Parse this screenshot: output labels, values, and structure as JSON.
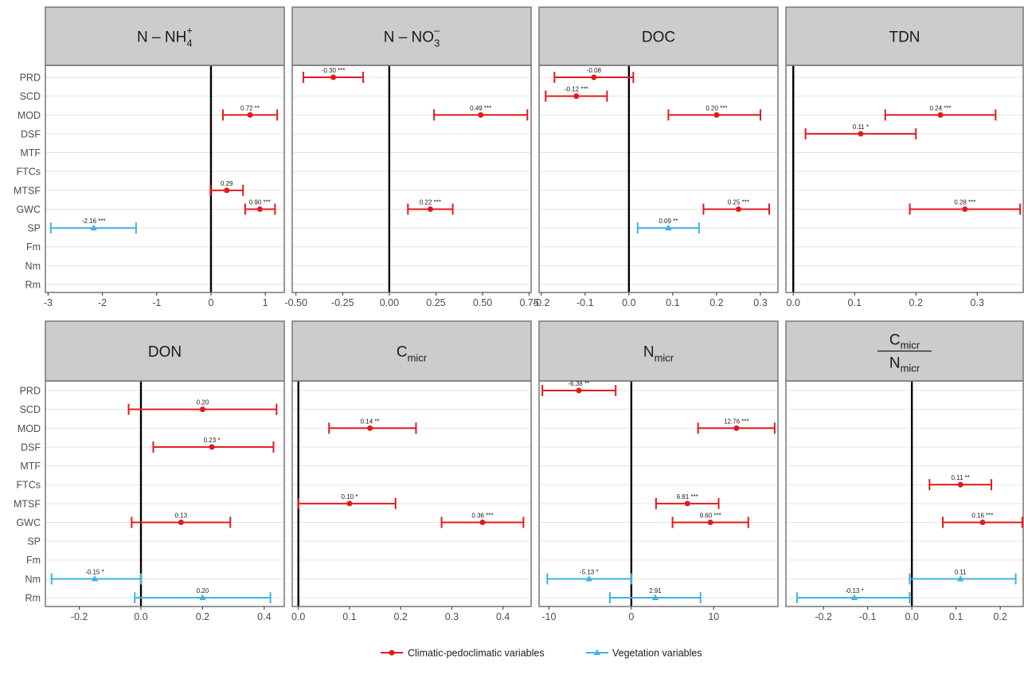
{
  "chart_data": {
    "type": "forest",
    "categories": [
      "PRD",
      "SCD",
      "MOD",
      "DSF",
      "MTF",
      "FTCs",
      "MTSF",
      "GWC",
      "SP",
      "Fm",
      "Nm",
      "Rm"
    ],
    "colors": {
      "Climatic-pedoclimatic variables": "#e31a1c",
      "Vegetation variables": "#3fb3e6"
    },
    "legend": {
      "position": "bottom",
      "items": [
        {
          "label": "Climatic-pedoclimatic variables",
          "color": "#e31a1c",
          "shape": "circle"
        },
        {
          "label": "Vegetation variables",
          "color": "#3fb3e6",
          "shape": "triangle"
        }
      ]
    },
    "panels": [
      {
        "title": {
          "base": "N – NH",
          "sub": "4",
          "sup": "+"
        },
        "xlim": [
          -3.05,
          1.35
        ],
        "ticks": [
          -3,
          -2,
          -1,
          0,
          1
        ],
        "tick_labels": [
          "-3",
          "-2",
          "-1",
          "0",
          "1"
        ],
        "points": [
          {
            "var": "MOD",
            "est": 0.72,
            "lo": 0.22,
            "hi": 1.22,
            "label": "0.72 **",
            "group": "Climatic-pedoclimatic variables"
          },
          {
            "var": "MTSF",
            "est": 0.29,
            "lo": -0.01,
            "hi": 0.59,
            "label": "0.29",
            "group": "Climatic-pedoclimatic variables"
          },
          {
            "var": "GWC",
            "est": 0.9,
            "lo": 0.63,
            "hi": 1.18,
            "label": "0.90 ***",
            "group": "Climatic-pedoclimatic variables"
          },
          {
            "var": "SP",
            "est": -2.16,
            "lo": -2.95,
            "hi": -1.38,
            "label": "-2.16 ***",
            "group": "Vegetation variables"
          }
        ]
      },
      {
        "title": {
          "base": "N – NO",
          "sub": "3",
          "sup": "–"
        },
        "xlim": [
          -0.52,
          0.76
        ],
        "ticks": [
          -0.5,
          -0.25,
          0,
          0.25,
          0.5,
          0.75
        ],
        "tick_labels": [
          "-0.50",
          "-0.25",
          "0.00",
          "0.25",
          "0.50",
          "0.75"
        ],
        "points": [
          {
            "var": "PRD",
            "est": -0.3,
            "lo": -0.46,
            "hi": -0.14,
            "label": "-0.30 ***",
            "group": "Climatic-pedoclimatic variables"
          },
          {
            "var": "MOD",
            "est": 0.49,
            "lo": 0.24,
            "hi": 0.74,
            "label": "0.49 ***",
            "group": "Climatic-pedoclimatic variables"
          },
          {
            "var": "GWC",
            "est": 0.22,
            "lo": 0.1,
            "hi": 0.34,
            "label": "0.22 ***",
            "group": "Climatic-pedoclimatic variables"
          }
        ]
      },
      {
        "title": {
          "base": "DOC"
        },
        "xlim": [
          -0.205,
          0.34
        ],
        "ticks": [
          -0.2,
          -0.1,
          0,
          0.1,
          0.2,
          0.3
        ],
        "tick_labels": [
          "-0.2",
          "-0.1",
          "0.0",
          "0.1",
          "0.2",
          "0.3"
        ],
        "points": [
          {
            "var": "PRD",
            "est": -0.08,
            "lo": -0.17,
            "hi": 0.01,
            "label": "-0.08",
            "group": "Climatic-pedoclimatic variables"
          },
          {
            "var": "SCD",
            "est": -0.12,
            "lo": -0.19,
            "hi": -0.05,
            "label": "-0.12 ***",
            "group": "Climatic-pedoclimatic variables"
          },
          {
            "var": "MOD",
            "est": 0.2,
            "lo": 0.09,
            "hi": 0.3,
            "label": "0.20 ***",
            "group": "Climatic-pedoclimatic variables"
          },
          {
            "var": "GWC",
            "est": 0.25,
            "lo": 0.17,
            "hi": 0.32,
            "label": "0.25 ***",
            "group": "Climatic-pedoclimatic variables"
          },
          {
            "var": "SP",
            "est": 0.09,
            "lo": 0.02,
            "hi": 0.16,
            "label": "0.09 **",
            "group": "Vegetation variables"
          }
        ]
      },
      {
        "title": {
          "base": "TDN"
        },
        "xlim": [
          -0.012,
          0.375
        ],
        "ticks": [
          0,
          0.1,
          0.2,
          0.3
        ],
        "tick_labels": [
          "0.0",
          "0.1",
          "0.2",
          "0.3"
        ],
        "points": [
          {
            "var": "MOD",
            "est": 0.24,
            "lo": 0.15,
            "hi": 0.33,
            "label": "0.24 ***",
            "group": "Climatic-pedoclimatic variables"
          },
          {
            "var": "DSF",
            "est": 0.11,
            "lo": 0.02,
            "hi": 0.2,
            "label": "0.11 *",
            "group": "Climatic-pedoclimatic variables"
          },
          {
            "var": "GWC",
            "est": 0.28,
            "lo": 0.19,
            "hi": 0.37,
            "label": "0.28 ***",
            "group": "Climatic-pedoclimatic variables"
          }
        ]
      },
      {
        "title": {
          "base": "DON"
        },
        "xlim": [
          -0.31,
          0.465
        ],
        "ticks": [
          -0.2,
          0,
          0.2,
          0.4
        ],
        "tick_labels": [
          "-0.2",
          "0.0",
          "0.2",
          "0.4"
        ],
        "points": [
          {
            "var": "SCD",
            "est": 0.2,
            "lo": -0.04,
            "hi": 0.44,
            "label": "0.20",
            "group": "Climatic-pedoclimatic variables"
          },
          {
            "var": "DSF",
            "est": 0.23,
            "lo": 0.04,
            "hi": 0.43,
            "label": "0.23 *",
            "group": "Climatic-pedoclimatic variables"
          },
          {
            "var": "GWC",
            "est": 0.13,
            "lo": -0.03,
            "hi": 0.29,
            "label": "0.13",
            "group": "Climatic-pedoclimatic variables"
          },
          {
            "var": "Nm",
            "est": -0.15,
            "lo": -0.29,
            "hi": 0.0,
            "label": "-0.15 *",
            "group": "Vegetation variables"
          },
          {
            "var": "Rm",
            "est": 0.2,
            "lo": -0.02,
            "hi": 0.42,
            "label": "0.20",
            "group": "Vegetation variables"
          }
        ]
      },
      {
        "title": {
          "base": "C",
          "sub": "micr"
        },
        "xlim": [
          -0.012,
          0.455
        ],
        "ticks": [
          0,
          0.1,
          0.2,
          0.3,
          0.4
        ],
        "tick_labels": [
          "0.0",
          "0.1",
          "0.2",
          "0.3",
          "0.4"
        ],
        "points": [
          {
            "var": "MOD",
            "est": 0.14,
            "lo": 0.06,
            "hi": 0.23,
            "label": "0.14 **",
            "group": "Climatic-pedoclimatic variables"
          },
          {
            "var": "MTSF",
            "est": 0.1,
            "lo": 0.0,
            "hi": 0.19,
            "label": "0.10 *",
            "group": "Climatic-pedoclimatic variables"
          },
          {
            "var": "GWC",
            "est": 0.36,
            "lo": 0.28,
            "hi": 0.44,
            "label": "0.36 ***",
            "group": "Climatic-pedoclimatic variables"
          }
        ]
      },
      {
        "title": {
          "base": "N",
          "sub": "micr"
        },
        "xlim": [
          -11.2,
          17.8
        ],
        "ticks": [
          -10,
          0,
          10
        ],
        "tick_labels": [
          "-10",
          "0",
          "10"
        ],
        "points": [
          {
            "var": "PRD",
            "est": -6.38,
            "lo": -10.8,
            "hi": -1.9,
            "label": "-6.38 **",
            "group": "Climatic-pedoclimatic variables"
          },
          {
            "var": "MOD",
            "est": 12.76,
            "lo": 8.1,
            "hi": 17.4,
            "label": "12.76 ***",
            "group": "Climatic-pedoclimatic variables"
          },
          {
            "var": "MTSF",
            "est": 6.81,
            "lo": 3.0,
            "hi": 10.6,
            "label": "6.81 ***",
            "group": "Climatic-pedoclimatic variables"
          },
          {
            "var": "GWC",
            "est": 9.6,
            "lo": 5.0,
            "hi": 14.2,
            "label": "9.60 ***",
            "group": "Climatic-pedoclimatic variables"
          },
          {
            "var": "Nm",
            "est": -5.13,
            "lo": -10.2,
            "hi": 0.0,
            "label": "-5.13 *",
            "group": "Vegetation variables"
          },
          {
            "var": "Rm",
            "est": 2.91,
            "lo": -2.6,
            "hi": 8.4,
            "label": "2.91",
            "group": "Vegetation variables"
          }
        ]
      },
      {
        "title": {
          "fraction": true,
          "num_base": "C",
          "num_sub": "micr",
          "den_base": "N",
          "den_sub": "micr"
        },
        "xlim": [
          -0.285,
          0.252
        ],
        "ticks": [
          -0.2,
          -0.1,
          0,
          0.1,
          0.2
        ],
        "tick_labels": [
          "-0.2",
          "-0.1",
          "0.0",
          "0.1",
          "0.2"
        ],
        "points": [
          {
            "var": "FTCs",
            "est": 0.11,
            "lo": 0.04,
            "hi": 0.18,
            "label": "0.11 **",
            "group": "Climatic-pedoclimatic variables"
          },
          {
            "var": "GWC",
            "est": 0.16,
            "lo": 0.07,
            "hi": 0.25,
            "label": "0.16 ***",
            "group": "Climatic-pedoclimatic variables"
          },
          {
            "var": "Nm",
            "est": 0.11,
            "lo": -0.005,
            "hi": 0.235,
            "label": "0.11",
            "group": "Vegetation variables"
          },
          {
            "var": "Rm",
            "est": -0.13,
            "lo": -0.26,
            "hi": -0.005,
            "label": "-0.13 *",
            "group": "Vegetation variables"
          }
        ]
      }
    ]
  }
}
